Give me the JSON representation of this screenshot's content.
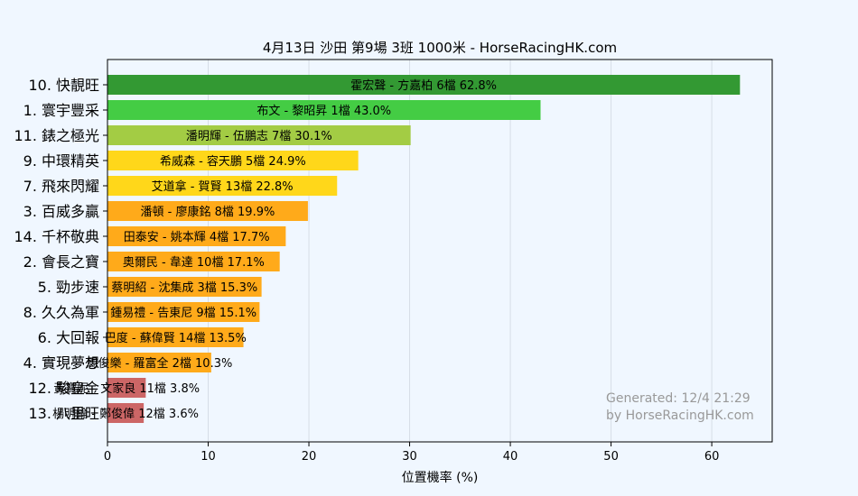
{
  "chart_data": {
    "type": "bar",
    "orientation": "horizontal",
    "title": "4月13日  沙田  第9場  3班  1000米 - HorseRacingHK.com",
    "xlabel": "位置機率 (%)",
    "ylabel": "",
    "xlim": [
      0,
      66
    ],
    "xticks": [
      0,
      10,
      20,
      30,
      40,
      50,
      60
    ],
    "grid": true,
    "categories": [
      "10. 快靚旺",
      "1. 寰宇豐采",
      "11. 錶之極光",
      "9. 中環精英",
      "7. 飛來閃耀",
      "3. 百威多贏",
      "14. 千杯敬典",
      "2. 會長之寶",
      "5. 勁步速",
      "8. 久久為軍",
      "6. 大回報",
      "4. 實現夢想",
      "12. 駿皇金",
      "13. 八里旺"
    ],
    "values": [
      62.8,
      43.0,
      30.1,
      24.9,
      22.8,
      19.9,
      17.7,
      17.1,
      15.3,
      15.1,
      13.5,
      10.3,
      3.8,
      3.6
    ],
    "data_labels": [
      "霍宏聲 - 方嘉柏 6檔  62.8%",
      "布文 - 黎昭昇 1檔  43.0%",
      "潘明輝 - 伍鵬志 7檔  30.1%",
      "希威森 - 容天鵬 5檔  24.9%",
      "艾道拿 - 賀賢 13檔  22.8%",
      "潘頓 - 廖康銘 8檔  19.9%",
      "田泰安 - 姚本輝 4檔  17.7%",
      "奧爾民 - 韋達 10檔  17.1%",
      "蔡明紹 - 沈集成 3檔  15.3%",
      "鍾易禮 - 告東尼 9檔  15.1%",
      "巴度 - 蘇偉賢 14檔  13.5%",
      "周俊樂 - 羅富全 2檔  10.3%",
      "黃寶妮 - 文家良 11檔  3.8%",
      "楊明綸 - 鄭俊偉 12檔  3.6%"
    ],
    "colors": [
      "#339933",
      "#44cc44",
      "#a3cc44",
      "#ffd71a",
      "#ffd71a",
      "#ffaa1a",
      "#ffaa1a",
      "#ffaa1a",
      "#ffaa1a",
      "#ffaa1a",
      "#ffaa1a",
      "#ffaa1a",
      "#cc6666",
      "#cc6666"
    ],
    "watermark": [
      "Generated: 12/4 21:29",
      "by HorseRacingHK.com"
    ]
  }
}
